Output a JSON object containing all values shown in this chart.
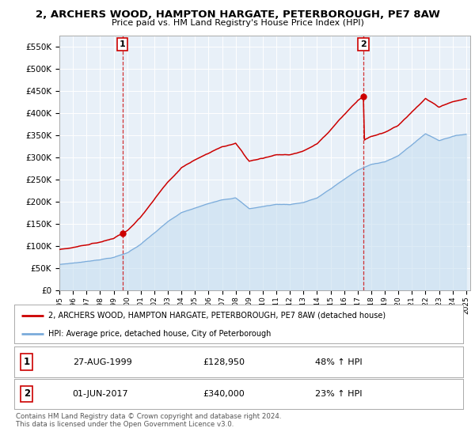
{
  "title": "2, ARCHERS WOOD, HAMPTON HARGATE, PETERBOROUGH, PE7 8AW",
  "subtitle": "Price paid vs. HM Land Registry's House Price Index (HPI)",
  "ylim": [
    0,
    575000
  ],
  "yticks": [
    0,
    50000,
    100000,
    150000,
    200000,
    250000,
    300000,
    350000,
    400000,
    450000,
    500000,
    550000
  ],
  "ytick_labels": [
    "£0",
    "£50K",
    "£100K",
    "£150K",
    "£200K",
    "£250K",
    "£300K",
    "£350K",
    "£400K",
    "£450K",
    "£500K",
    "£550K"
  ],
  "hpi_color": "#7aabdb",
  "hpi_fill_color": "#c8dff0",
  "price_color": "#cc0000",
  "marker_color": "#cc0000",
  "sale1_year": 1999.65,
  "sale1_price": 128950,
  "sale1_label": "1",
  "sale2_year": 2017.42,
  "sale2_price": 340000,
  "sale2_label": "2",
  "legend_line1": "2, ARCHERS WOOD, HAMPTON HARGATE, PETERBOROUGH, PE7 8AW (detached house)",
  "legend_line2": "HPI: Average price, detached house, City of Peterborough",
  "table_row1": [
    "1",
    "27-AUG-1999",
    "£128,950",
    "48% ↑ HPI"
  ],
  "table_row2": [
    "2",
    "01-JUN-2017",
    "£340,000",
    "23% ↑ HPI"
  ],
  "footnote": "Contains HM Land Registry data © Crown copyright and database right 2024.\nThis data is licensed under the Open Government Licence v3.0.",
  "bg_color": "#ffffff",
  "plot_bg_color": "#e8f0f8",
  "grid_color": "#ffffff",
  "box_color": "#cc0000"
}
